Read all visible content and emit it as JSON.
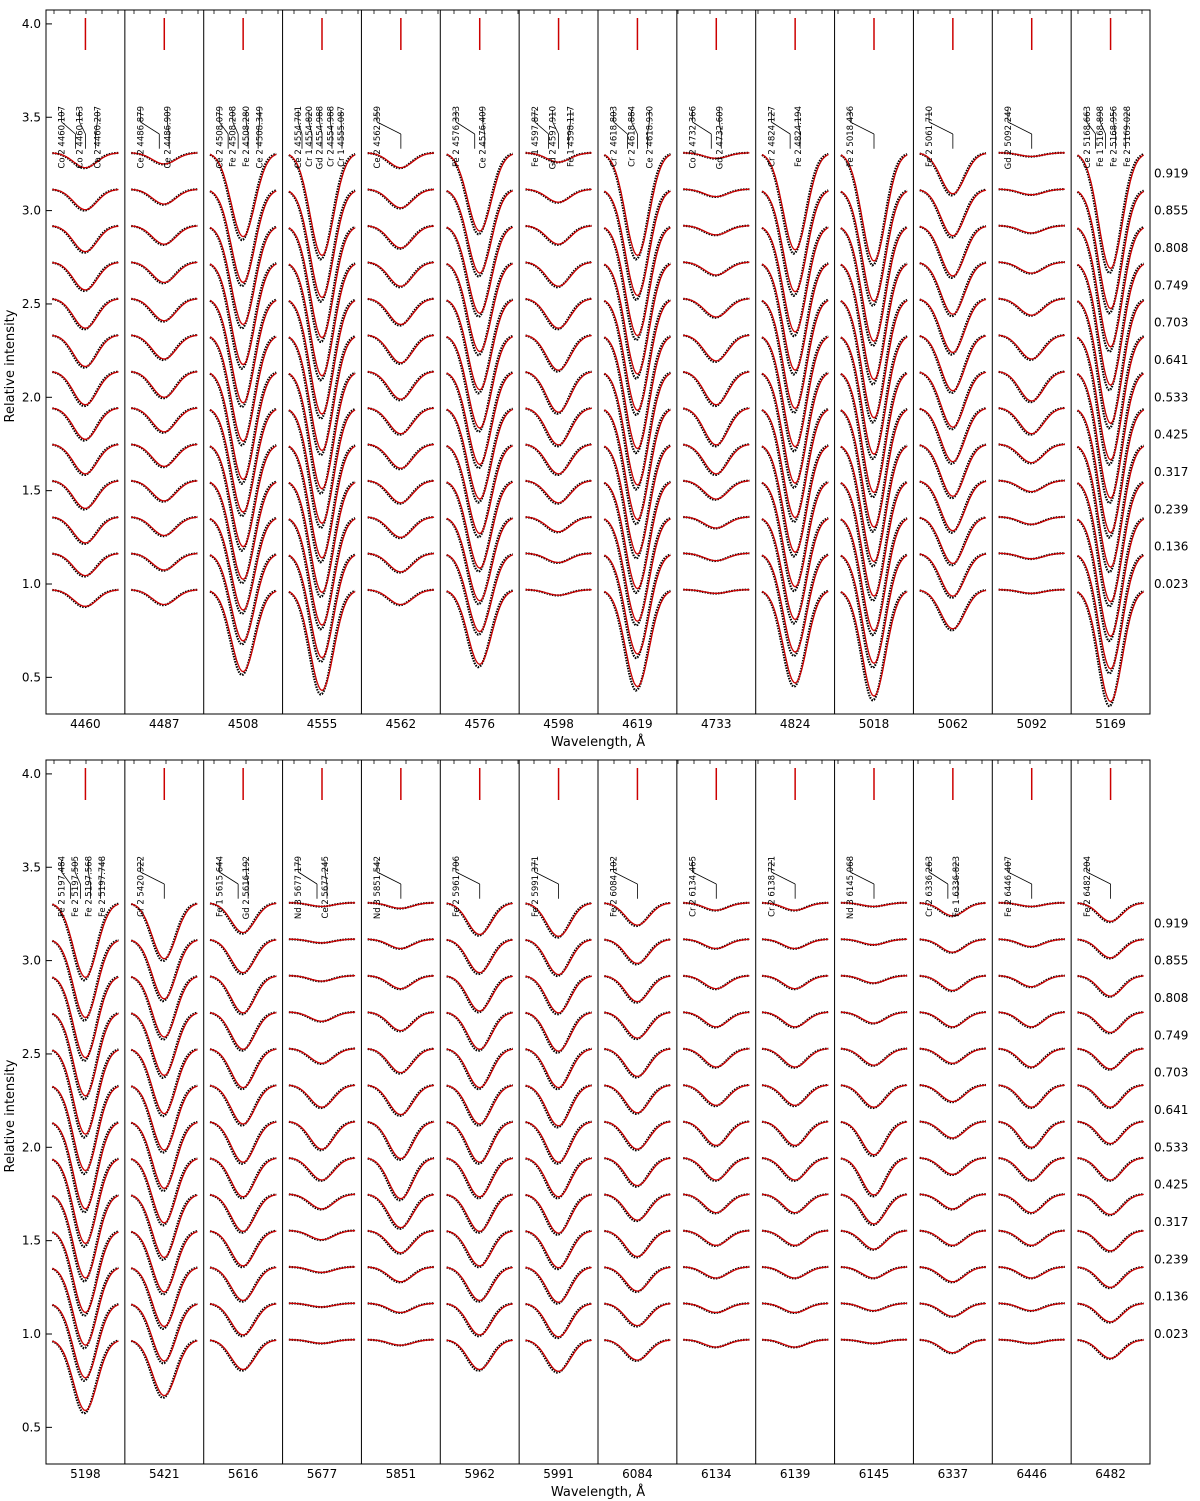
{
  "figure": {
    "colors": {
      "observed": "#000000",
      "model": "#cc0000",
      "axis": "#000000"
    }
  },
  "chart_data": [
    {
      "type": "line",
      "xlabel": "Wavelength, Å",
      "ylabel": "Relative intensity",
      "ylim": [
        0.25,
        4.02
      ],
      "y_ticks": [
        "0.5",
        "1.0",
        "1.5",
        "2.0",
        "2.5",
        "3.0",
        "3.5",
        "4.0"
      ],
      "phases": [
        "0.919",
        "0.855",
        "0.808",
        "0.749",
        "0.703",
        "0.641",
        "0.533",
        "0.425",
        "0.317",
        "0.239",
        "0.136",
        "0.023"
      ],
      "offset_step": 0.2,
      "legend": [],
      "series": [
        {
          "name": "",
          "role": "observed",
          "color": "#000000"
        },
        {
          "name": "",
          "role": "model",
          "color": "#cc0000"
        }
      ],
      "panels": [
        {
          "label": "4460",
          "depths": [
            0.08,
            0.11,
            0.14,
            0.15,
            0.16,
            0.17,
            0.18,
            0.17,
            0.16,
            0.15,
            0.14,
            0.12,
            0.09
          ],
          "ids": [
            "Co 2 4460.107",
            "Co 2 4460.163",
            "Co 2 4460.207"
          ]
        },
        {
          "label": "4487",
          "depths": [
            0.06,
            0.08,
            0.1,
            0.11,
            0.12,
            0.13,
            0.14,
            0.13,
            0.12,
            0.11,
            0.1,
            0.09,
            0.08
          ],
          "ids": [
            "Ce 2 4486.879",
            "Ce 2 4486.909"
          ]
        },
        {
          "label": "4508",
          "depths": [
            0.45,
            0.5,
            0.53,
            0.55,
            0.56,
            0.57,
            0.58,
            0.56,
            0.55,
            0.53,
            0.5,
            0.47,
            0.44
          ],
          "ids": [
            "Ce 2 4508.079",
            "Fe 2 4508.208",
            "Fe 2 4508.280",
            "Ce 2 4508.349"
          ]
        },
        {
          "label": "4555",
          "depths": [
            0.55,
            0.58,
            0.6,
            0.61,
            0.62,
            0.62,
            0.63,
            0.62,
            0.61,
            0.6,
            0.58,
            0.56,
            0.54
          ],
          "ids": [
            "Ce 2 4554.701",
            "Cr 1 4554.820",
            "Gd 2 4554.988",
            "Cr 2 4554.988",
            "Cr 1 4555.087"
          ]
        },
        {
          "label": "4562",
          "depths": [
            0.08,
            0.1,
            0.12,
            0.13,
            0.14,
            0.15,
            0.15,
            0.14,
            0.13,
            0.12,
            0.11,
            0.1,
            0.08
          ],
          "ids": [
            "Ce 2 4562.359"
          ]
        },
        {
          "label": "4576",
          "depths": [
            0.42,
            0.45,
            0.47,
            0.48,
            0.49,
            0.5,
            0.5,
            0.49,
            0.48,
            0.47,
            0.45,
            0.42,
            0.4
          ],
          "ids": [
            "Fe 2 4576.333",
            "Ce 2 4576.409"
          ]
        },
        {
          "label": "4598",
          "depths": [
            0.05,
            0.07,
            0.1,
            0.13,
            0.16,
            0.19,
            0.22,
            0.2,
            0.16,
            0.12,
            0.08,
            0.05,
            0.03
          ],
          "ids": [
            "Fe 1 4597.872",
            "Gd 2 4597.910",
            "Fe 1 4598.117"
          ]
        },
        {
          "label": "4619",
          "depths": [
            0.55,
            0.57,
            0.59,
            0.6,
            0.6,
            0.61,
            0.61,
            0.6,
            0.59,
            0.58,
            0.56,
            0.54,
            0.52
          ],
          "ids": [
            "Cr 2 4618.803",
            "Cr 2 4618.884",
            "Ce 2 4618.930"
          ]
        },
        {
          "label": "4733",
          "depths": [
            0.03,
            0.04,
            0.05,
            0.07,
            0.1,
            0.14,
            0.18,
            0.2,
            0.16,
            0.1,
            0.06,
            0.04,
            0.02
          ],
          "ids": [
            "Co 2 4732.366",
            "Gd 2 4732.609"
          ]
        },
        {
          "label": "4824",
          "depths": [
            0.52,
            0.55,
            0.57,
            0.58,
            0.59,
            0.6,
            0.6,
            0.59,
            0.58,
            0.57,
            0.55,
            0.53,
            0.5
          ],
          "ids": [
            "Cr 2 4824.127",
            "Fe 2 4824.194"
          ]
        },
        {
          "label": "5018",
          "depths": [
            0.58,
            0.6,
            0.62,
            0.63,
            0.64,
            0.64,
            0.65,
            0.64,
            0.63,
            0.62,
            0.61,
            0.59,
            0.57
          ],
          "ids": [
            "Fe 2 5018.436"
          ]
        },
        {
          "label": "5062",
          "depths": [
            0.22,
            0.25,
            0.27,
            0.28,
            0.29,
            0.3,
            0.3,
            0.29,
            0.28,
            0.27,
            0.25,
            0.23,
            0.21
          ],
          "ids": [
            "Fe 2 5061.710"
          ]
        },
        {
          "label": "5092",
          "depths": [
            0.02,
            0.03,
            0.04,
            0.06,
            0.09,
            0.13,
            0.16,
            0.14,
            0.1,
            0.06,
            0.04,
            0.03,
            0.02
          ],
          "ids": [
            "Gd 2 5092.249"
          ]
        },
        {
          "label": "5169",
          "depths": [
            0.62,
            0.64,
            0.65,
            0.66,
            0.67,
            0.67,
            0.68,
            0.67,
            0.66,
            0.65,
            0.64,
            0.62,
            0.6
          ],
          "ids": [
            "Ce 2 5168.663",
            "Fe 1 5168.898",
            "Fe 2 5168.956",
            "Fe 2 5169.028"
          ]
        }
      ]
    },
    {
      "type": "line",
      "xlabel": "Wavelength, Å",
      "ylabel": "Relative intensity",
      "ylim": [
        0.25,
        4.02
      ],
      "y_ticks": [
        "0.5",
        "1.0",
        "1.5",
        "2.0",
        "2.5",
        "3.0",
        "3.5",
        "4.0"
      ],
      "phases": [
        "0.919",
        "0.855",
        "0.808",
        "0.749",
        "0.703",
        "0.641",
        "0.533",
        "0.425",
        "0.317",
        "0.239",
        "0.136",
        "0.023"
      ],
      "offset_step": 0.2,
      "legend": [],
      "series": [
        {
          "name": "",
          "role": "observed",
          "color": "#000000"
        },
        {
          "name": "",
          "role": "model",
          "color": "#cc0000"
        }
      ],
      "panels": [
        {
          "label": "5198",
          "depths": [
            0.4,
            0.42,
            0.44,
            0.45,
            0.46,
            0.46,
            0.47,
            0.46,
            0.45,
            0.44,
            0.42,
            0.4,
            0.38
          ],
          "ids": [
            "Fe 2 5197.484",
            "Fe 2 5197.505",
            "Fe 2 5197.568",
            "Fe 2 5197.748"
          ]
        },
        {
          "label": "5421",
          "depths": [
            0.3,
            0.32,
            0.33,
            0.34,
            0.35,
            0.35,
            0.36,
            0.35,
            0.34,
            0.33,
            0.32,
            0.31,
            0.3
          ],
          "ids": [
            "Cr 2 5420.922"
          ]
        },
        {
          "label": "5616",
          "depths": [
            0.16,
            0.18,
            0.2,
            0.2,
            0.21,
            0.21,
            0.22,
            0.21,
            0.2,
            0.19,
            0.18,
            0.17,
            0.16
          ],
          "ids": [
            "Fe 1 5615.644",
            "Gd 2 5616.192"
          ]
        },
        {
          "label": "5677",
          "depths": [
            0.02,
            0.02,
            0.03,
            0.05,
            0.08,
            0.12,
            0.15,
            0.12,
            0.08,
            0.05,
            0.03,
            0.02,
            0.02
          ],
          "ids": [
            "Nd 3 5677.179",
            "Ce 2 5677.245"
          ]
        },
        {
          "label": "5851",
          "depths": [
            0.03,
            0.05,
            0.07,
            0.1,
            0.13,
            0.16,
            0.2,
            0.22,
            0.18,
            0.12,
            0.08,
            0.05,
            0.03
          ],
          "ids": [
            "Nd 3 5851.542"
          ]
        },
        {
          "label": "5962",
          "depths": [
            0.17,
            0.18,
            0.19,
            0.2,
            0.21,
            0.21,
            0.22,
            0.21,
            0.2,
            0.19,
            0.18,
            0.17,
            0.16
          ],
          "ids": [
            "Fe 2 5961.706"
          ]
        },
        {
          "label": "5991",
          "depths": [
            0.18,
            0.19,
            0.2,
            0.21,
            0.21,
            0.22,
            0.22,
            0.21,
            0.21,
            0.2,
            0.19,
            0.18,
            0.17
          ],
          "ids": [
            "Fe 2 5991.371"
          ]
        },
        {
          "label": "6084",
          "depths": [
            0.12,
            0.13,
            0.14,
            0.14,
            0.15,
            0.15,
            0.15,
            0.15,
            0.14,
            0.14,
            0.13,
            0.12,
            0.11
          ],
          "ids": [
            "Fe 2 6084.102"
          ]
        },
        {
          "label": "6134",
          "depths": [
            0.04,
            0.05,
            0.07,
            0.08,
            0.1,
            0.11,
            0.13,
            0.12,
            0.1,
            0.08,
            0.06,
            0.05,
            0.04
          ],
          "ids": [
            "Cr 2 6134.465"
          ]
        },
        {
          "label": "6139",
          "depths": [
            0.04,
            0.05,
            0.07,
            0.08,
            0.1,
            0.11,
            0.13,
            0.12,
            0.1,
            0.08,
            0.06,
            0.05,
            0.04
          ],
          "ids": [
            "Cr 2 6138.721"
          ]
        },
        {
          "label": "6145",
          "depths": [
            0.02,
            0.03,
            0.04,
            0.06,
            0.09,
            0.12,
            0.18,
            0.2,
            0.16,
            0.1,
            0.06,
            0.04,
            0.02
          ],
          "ids": [
            "Nd 3 6145.068"
          ]
        },
        {
          "label": "6337",
          "depths": [
            0.07,
            0.07,
            0.08,
            0.08,
            0.08,
            0.09,
            0.09,
            0.09,
            0.08,
            0.08,
            0.08,
            0.07,
            0.07
          ],
          "ids": [
            "Cr 2 6336.263",
            "Fe 1 6336.823"
          ]
        },
        {
          "label": "6446",
          "depths": [
            0.02,
            0.04,
            0.06,
            0.08,
            0.1,
            0.12,
            0.14,
            0.12,
            0.1,
            0.08,
            0.06,
            0.04,
            0.02
          ],
          "ids": [
            "Fe 2 6446.407"
          ]
        },
        {
          "label": "6482",
          "depths": [
            0.1,
            0.1,
            0.11,
            0.11,
            0.11,
            0.12,
            0.12,
            0.12,
            0.11,
            0.11,
            0.11,
            0.1,
            0.1
          ],
          "ids": [
            "Fe 2 6482.204"
          ]
        }
      ]
    }
  ]
}
